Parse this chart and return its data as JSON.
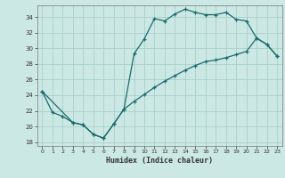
{
  "xlabel": "Humidex (Indice chaleur)",
  "xlim": [
    -0.5,
    23.5
  ],
  "ylim": [
    17.5,
    35.5
  ],
  "xticks": [
    0,
    1,
    2,
    3,
    4,
    5,
    6,
    7,
    8,
    9,
    10,
    11,
    12,
    13,
    14,
    15,
    16,
    17,
    18,
    19,
    20,
    21,
    22,
    23
  ],
  "yticks": [
    18,
    20,
    22,
    24,
    26,
    28,
    30,
    32,
    34
  ],
  "bg_color": "#cce8e4",
  "grid_color": "#aacfcb",
  "line_color": "#1a6b6b",
  "line1_x": [
    0,
    1,
    2,
    3,
    4,
    5,
    6,
    7,
    8,
    9,
    10,
    11,
    12,
    13,
    14,
    15,
    16,
    17,
    18,
    19,
    20,
    21,
    22,
    23
  ],
  "line1_y": [
    24.5,
    21.8,
    21.3,
    20.5,
    20.2,
    19.0,
    18.5,
    20.3,
    22.2,
    29.3,
    31.2,
    33.8,
    33.5,
    34.4,
    35.0,
    34.6,
    34.3,
    34.3,
    34.6,
    33.7,
    33.5,
    31.3,
    30.5,
    29.0
  ],
  "line2_x": [
    0,
    3,
    4,
    5,
    6,
    7,
    8,
    9,
    10,
    11,
    12,
    13,
    14,
    15,
    16,
    17,
    18,
    19,
    20,
    21,
    22,
    23
  ],
  "line2_y": [
    24.5,
    20.5,
    20.2,
    19.0,
    18.5,
    20.3,
    22.2,
    23.2,
    24.1,
    25.0,
    25.8,
    26.5,
    27.2,
    27.8,
    28.3,
    28.5,
    28.8,
    29.2,
    29.6,
    31.3,
    30.5,
    29.0
  ]
}
